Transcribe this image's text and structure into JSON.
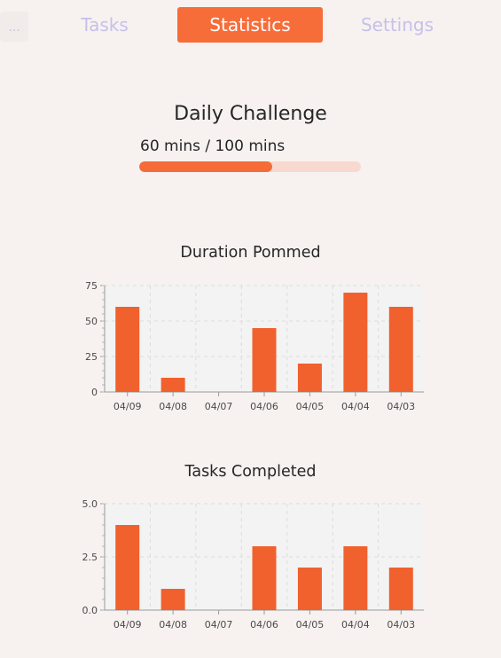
{
  "nav": {
    "menu_label": "...",
    "tabs": [
      {
        "label": "Tasks"
      },
      {
        "label": "Statistics"
      },
      {
        "label": "Settings"
      }
    ]
  },
  "challenge": {
    "title": "Daily Challenge",
    "progress_text": "60 mins / 100 mins",
    "progress_fraction": 0.6
  },
  "colors": {
    "accent": "#f76d3a",
    "bar": "#f0612d",
    "track": "#f8d9cf",
    "inactive_tab": "#c6c0ea",
    "background": "#f7f2f0"
  },
  "chart_data": [
    {
      "type": "bar",
      "title": "Duration Pommed",
      "categories": [
        "04/09",
        "04/08",
        "04/07",
        "04/06",
        "04/05",
        "04/04",
        "04/03"
      ],
      "values": [
        60,
        10,
        0,
        45,
        20,
        70,
        60
      ],
      "ylim": [
        0,
        75
      ],
      "yticks": [
        "0",
        "25",
        "50",
        "75"
      ],
      "grid": true
    },
    {
      "type": "bar",
      "title": "Tasks Completed",
      "categories": [
        "04/09",
        "04/08",
        "04/07",
        "04/06",
        "04/05",
        "04/04",
        "04/03"
      ],
      "values": [
        4,
        1,
        0,
        3,
        2,
        3,
        2
      ],
      "ylim": [
        0,
        5
      ],
      "yticks": [
        "0.0",
        "2.5",
        "5.0"
      ],
      "grid": true
    }
  ]
}
